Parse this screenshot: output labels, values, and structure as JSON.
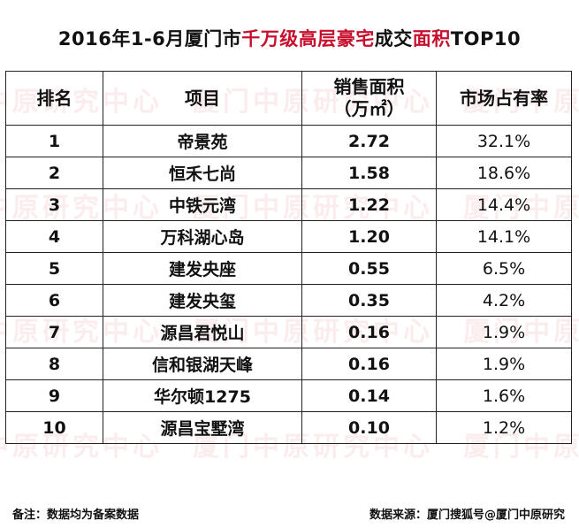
{
  "title": {
    "part1": "2016年1-6月厦门市",
    "part2": "千万级高层豪宅",
    "part3": "成交",
    "part4": "面积",
    "part5": "TOP10"
  },
  "colors": {
    "accent": "#c8102e",
    "border": "#222222",
    "text": "#111111"
  },
  "header": {
    "rank": "排名",
    "project": "项目",
    "area_line1": "销售面积",
    "area_line2": "（万㎡）",
    "share": "市场占有率"
  },
  "chart_data": {
    "type": "table",
    "columns": [
      "排名",
      "项目",
      "销售面积（万㎡）",
      "市场占有率"
    ],
    "rows": [
      [
        "1",
        "帝景苑",
        "2.72",
        "32.1%"
      ],
      [
        "2",
        "恒禾七尚",
        "1.58",
        "18.6%"
      ],
      [
        "3",
        "中铁元湾",
        "1.22",
        "14.4%"
      ],
      [
        "4",
        "万科湖心岛",
        "1.20",
        "14.1%"
      ],
      [
        "5",
        "建发央座",
        "0.55",
        "6.5%"
      ],
      [
        "6",
        "建发央玺",
        "0.35",
        "4.2%"
      ],
      [
        "7",
        "源昌君悦山",
        "0.16",
        "1.9%"
      ],
      [
        "8",
        "信和银湖天峰",
        "0.16",
        "1.9%"
      ],
      [
        "9",
        "华尔顿1275",
        "0.14",
        "1.6%"
      ],
      [
        "10",
        "源昌宝墅湾",
        "0.10",
        "1.2%"
      ]
    ]
  },
  "footer": {
    "note": "备注：数据均为备案数据",
    "source": "数据来源：厦门搜狐号@厦门中原研究"
  }
}
